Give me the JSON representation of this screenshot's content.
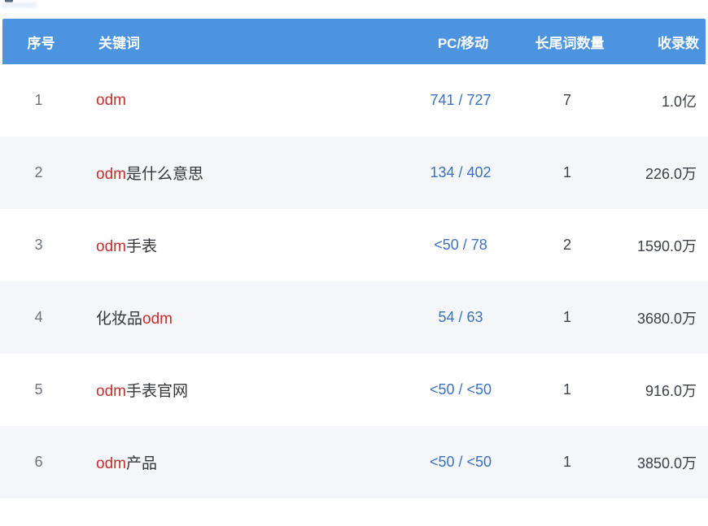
{
  "colors": {
    "header_bg": "#4d94e0",
    "header_text": "#ffffff",
    "row_alt_bg": "#f4f6f9",
    "keyword_highlight_red": "#c4302e",
    "keyword_text_dark": "#33353b",
    "link_blue": "#3a72c2",
    "index_gray": "#6e737b",
    "value_dark": "#3c4049"
  },
  "table": {
    "header": {
      "index": "序号",
      "keyword": "关键词",
      "pc_mobile": "PC/移动",
      "longtail": "长尾词数量",
      "indexed": "收录数"
    },
    "rows": [
      {
        "index": "1",
        "segments": [
          {
            "text": "odm",
            "type": "highlight"
          },
          {
            "text": "",
            "type": "normal"
          }
        ],
        "pc_mobile": "741 / 727",
        "longtail": "7",
        "indexed": "1.0亿"
      },
      {
        "index": "2",
        "segments": [
          {
            "text": "odm",
            "type": "highlight"
          },
          {
            "text": "是什么意思",
            "type": "normal"
          }
        ],
        "pc_mobile": "134 / 402",
        "longtail": "1",
        "indexed": "226.0万"
      },
      {
        "index": "3",
        "segments": [
          {
            "text": "odm",
            "type": "highlight"
          },
          {
            "text": "手表",
            "type": "normal"
          }
        ],
        "pc_mobile": "<50 / 78",
        "longtail": "2",
        "indexed": "1590.0万"
      },
      {
        "index": "4",
        "segments": [
          {
            "text": "化妆品",
            "type": "normal"
          },
          {
            "text": "odm",
            "type": "highlight"
          }
        ],
        "pc_mobile": "54 / 63",
        "longtail": "1",
        "indexed": "3680.0万"
      },
      {
        "index": "5",
        "segments": [
          {
            "text": "odm",
            "type": "highlight"
          },
          {
            "text": "手表官网",
            "type": "normal"
          }
        ],
        "pc_mobile": "<50 / <50",
        "longtail": "1",
        "indexed": "916.0万"
      },
      {
        "index": "6",
        "segments": [
          {
            "text": "odm",
            "type": "highlight"
          },
          {
            "text": "产品",
            "type": "normal"
          }
        ],
        "pc_mobile": "<50 / <50",
        "longtail": "1",
        "indexed": "3850.0万"
      }
    ]
  }
}
